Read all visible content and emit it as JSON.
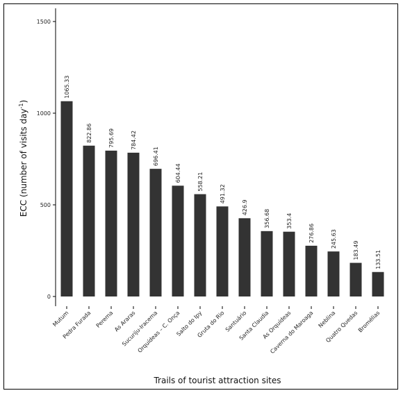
{
  "chart_data": {
    "type": "bar",
    "title": "",
    "xlabel": "Trails of tourist attraction sites",
    "ylabel": "ECC (number of visits day",
    "ylabel_superscript": "-1",
    "ylabel_close": ")",
    "ylim": [
      0,
      1500
    ],
    "yticks": [
      0,
      500,
      1000,
      1500
    ],
    "grid": false,
    "bar_color": "#333333",
    "categories": [
      "Mutum",
      "Pedra Furada",
      "Perema",
      "As Araras",
      "Sucuriju-Iracema",
      "Orquídeas – C. Onça",
      "Salto do Ipy",
      "Gruta do Rio",
      "Santuário",
      "Santa Claudia",
      "As Orquídeas",
      "Caverna do Maroaga",
      "Neblina",
      "Quatro Quedas",
      "Bromélias"
    ],
    "values": [
      1065.33,
      822.86,
      795.69,
      784.42,
      696.41,
      604.44,
      558.21,
      491.32,
      426.9,
      356.68,
      353.4,
      276.86,
      245.63,
      183.49,
      133.51
    ],
    "value_labels": [
      "1065.33",
      "822.86",
      "795.69",
      "784.42",
      "696.41",
      "604.44",
      "558.21",
      "491.32",
      "426.9",
      "356.68",
      "353.4",
      "276.86",
      "245.63",
      "183.49",
      "133.51"
    ]
  }
}
